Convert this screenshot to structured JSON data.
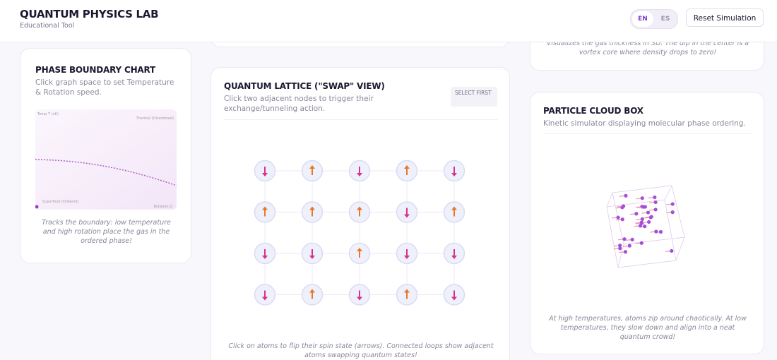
{
  "header": {
    "title": "QUANTUM PHYSICS LAB",
    "subtitle": "Educational Tool",
    "languages": [
      "EN",
      "ES"
    ],
    "reset_button": "Reset Simulation"
  },
  "density_card": {
    "caption": "Visualizes the gas thickness in 3D. The dip in the center is a vortex core where density drops to zero!"
  },
  "phase_card": {
    "title": "PHASE BOUNDARY CHART",
    "description": "Click graph space to set Temperature & Rotation speed.",
    "chart_labels": {
      "y_axis": "Temp T (nK)",
      "top_right": "Thermal (Disordered)",
      "bottom_left": "Superfluid (Ordered)",
      "x_axis": "Rotation Ω"
    },
    "caption": "Tracks the boundary: low temperature and high rotation place the gas in the ordered phase!"
  },
  "lattice_card": {
    "title": "QUANTUM LATTICE (\"SWAP\" VIEW)",
    "description": "Click two adjacent nodes to trigger their exchange/tunneling action.",
    "status": "SELECT FIRST",
    "spins": [
      [
        -1,
        1,
        -1,
        1,
        -1
      ],
      [
        1,
        1,
        1,
        -1,
        1
      ],
      [
        -1,
        -1,
        1,
        -1,
        -1
      ],
      [
        -1,
        1,
        -1,
        1,
        -1
      ]
    ],
    "caption": "Click on atoms to flip their spin state (arrows). Connected loops show adjacent atoms swapping quantum states!"
  },
  "cloud_card": {
    "title": "PARTICLE CLOUD BOX",
    "description": "Kinetic simulator displaying molecular phase ordering.",
    "caption": "At high temperatures, atoms zip around chaotically. At low temperatures, they slow down and align into a neat quantum crowd!"
  }
}
